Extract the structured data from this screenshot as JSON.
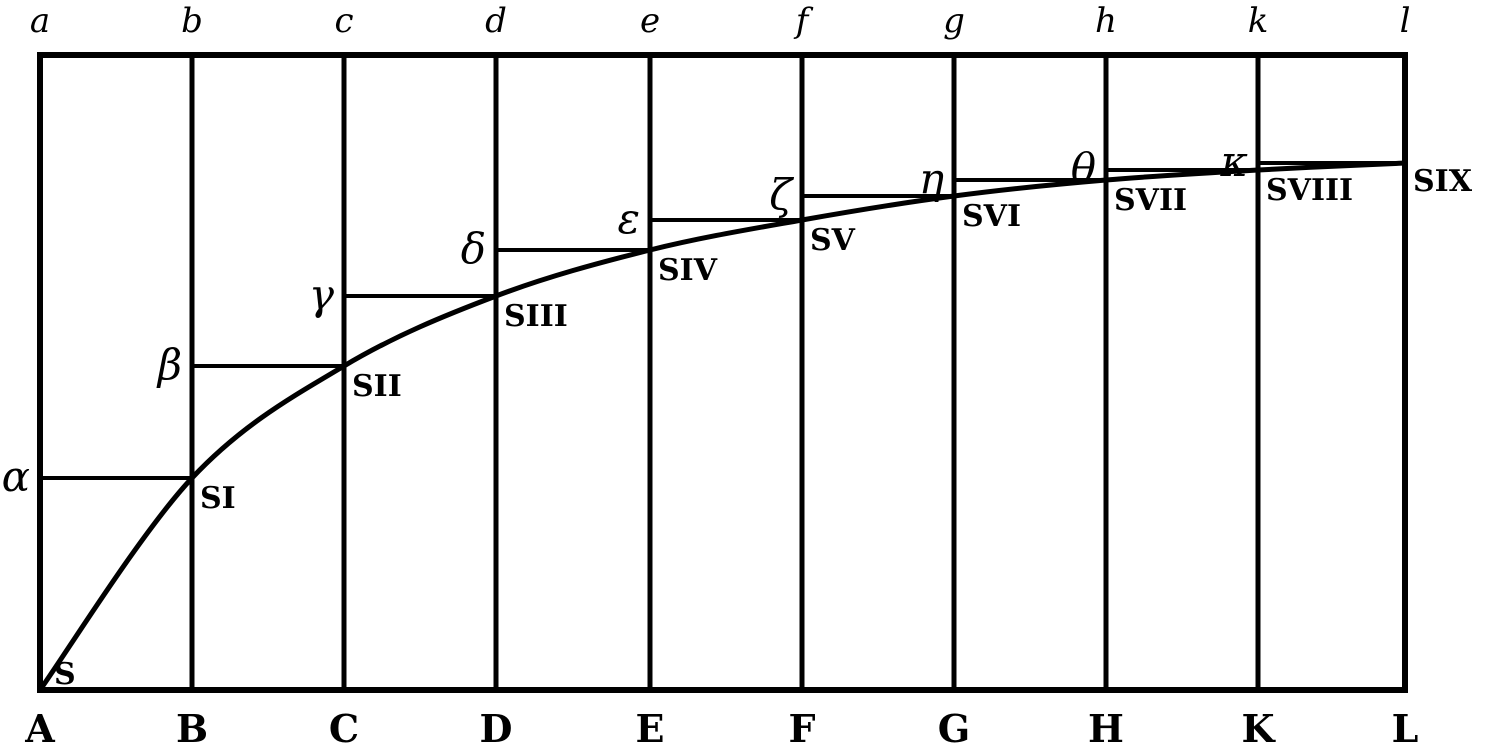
{
  "top_labels": [
    "a",
    "b",
    "c",
    "d",
    "e",
    "f",
    "g",
    "h",
    "k",
    "l"
  ],
  "bottom_labels": [
    "A",
    "B",
    "C",
    "D",
    "E",
    "F",
    "G",
    "H",
    "K",
    "L"
  ],
  "greek_labels": [
    "α",
    "β",
    "γ",
    "δ",
    "ε",
    "ζ",
    "η",
    "θ",
    "κ"
  ],
  "point_labels": [
    "S",
    "SI",
    "SII",
    "SIII",
    "SIV",
    "SV",
    "SVI",
    "SVII",
    "SVIII",
    "SIX"
  ]
}
